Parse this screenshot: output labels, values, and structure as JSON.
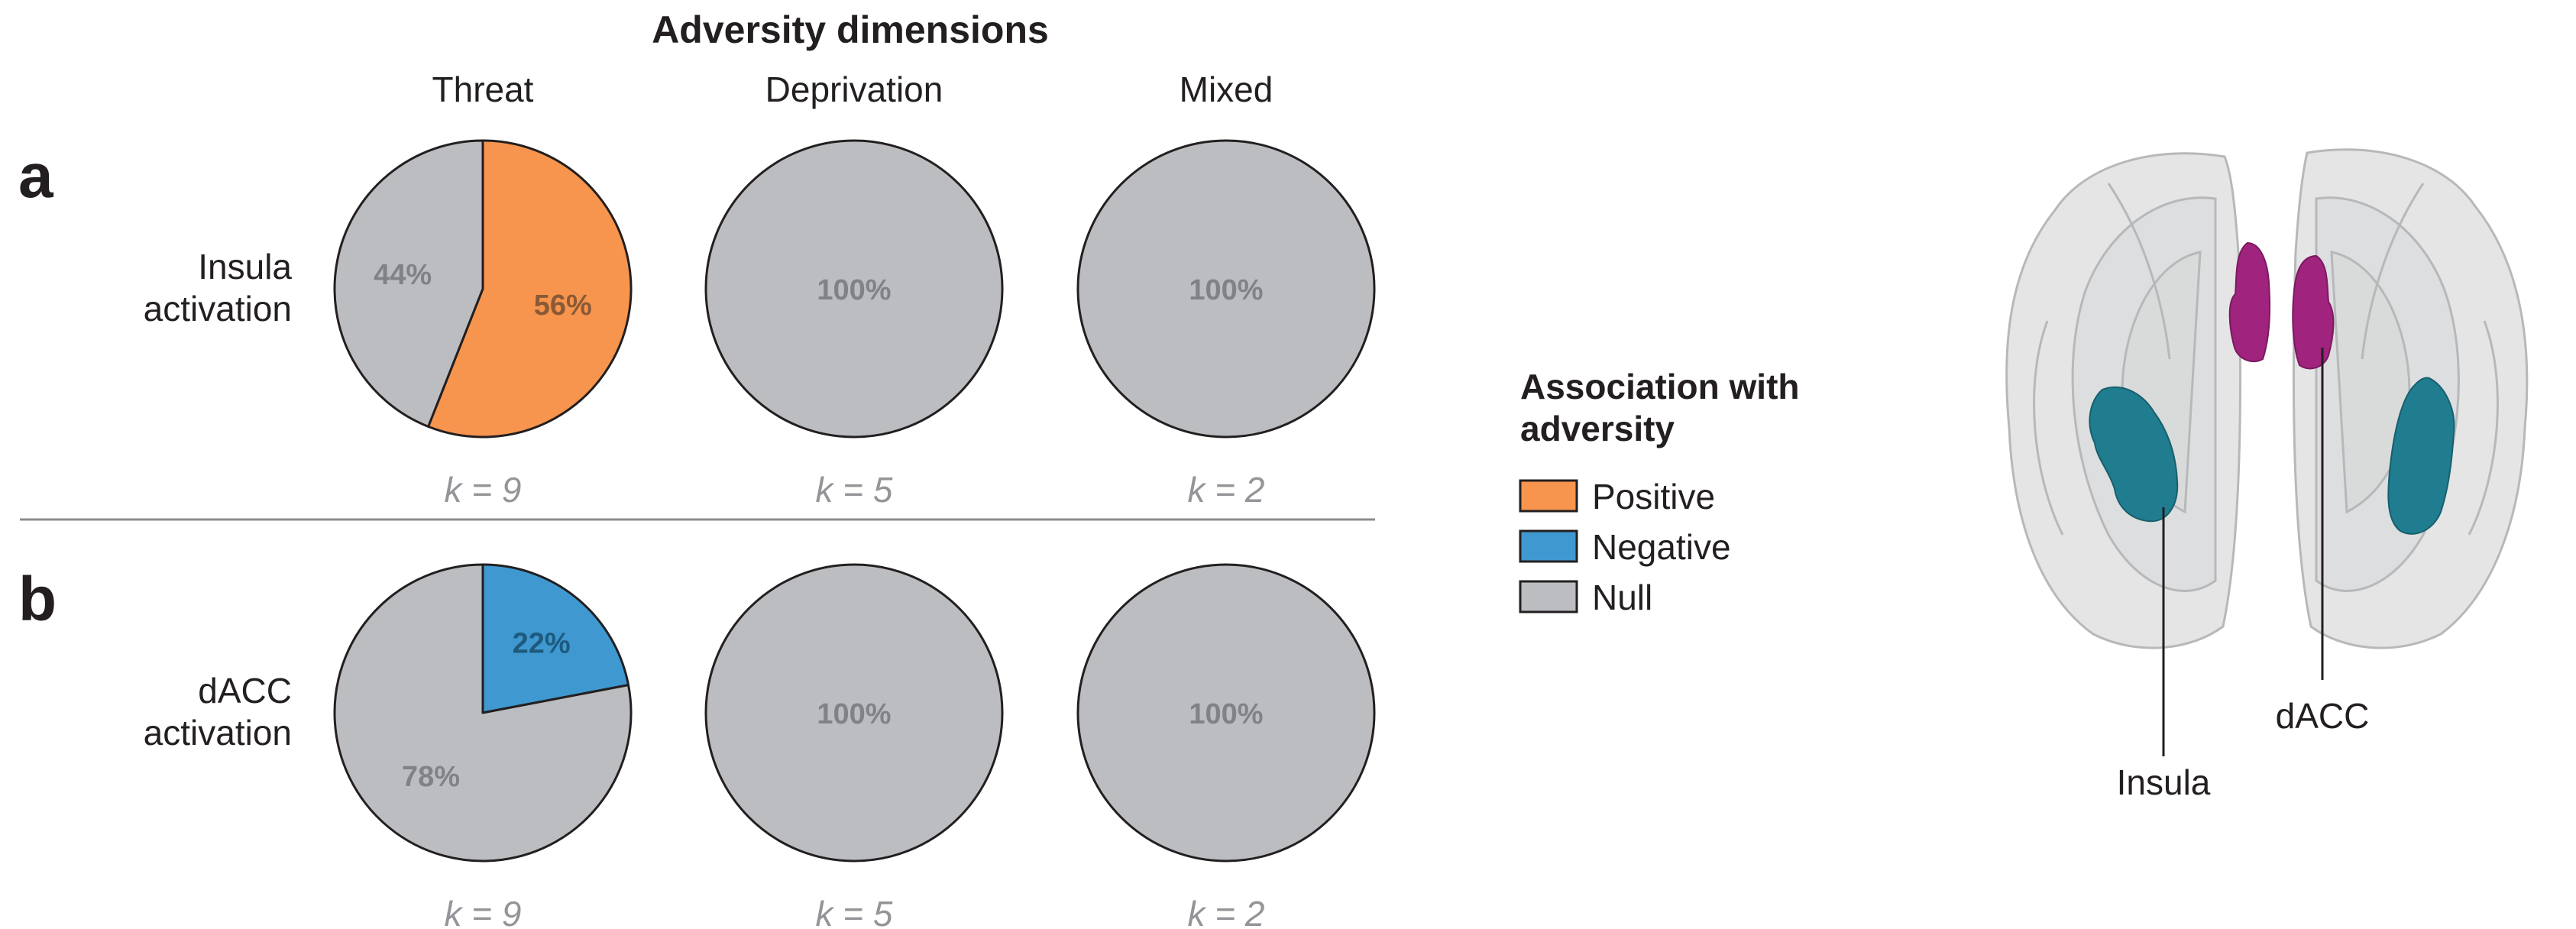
{
  "figure": {
    "header": "Adversity dimensions",
    "columns": [
      "Threat",
      "Deprivation",
      "Mixed"
    ]
  },
  "chart_data": [
    {
      "type": "pie",
      "panel": "a",
      "row_label": [
        "Insula",
        "activation"
      ],
      "pies": [
        {
          "column": "Threat",
          "k": "k = 9",
          "slices": [
            {
              "category": "Positive",
              "value": 56,
              "label": "56%"
            },
            {
              "category": "Null",
              "value": 44,
              "label": "44%"
            }
          ]
        },
        {
          "column": "Deprivation",
          "k": "k = 5",
          "slices": [
            {
              "category": "Null",
              "value": 100,
              "label": "100%"
            }
          ]
        },
        {
          "column": "Mixed",
          "k": "k = 2",
          "slices": [
            {
              "category": "Null",
              "value": 100,
              "label": "100%"
            }
          ]
        }
      ]
    },
    {
      "type": "pie",
      "panel": "b",
      "row_label": [
        "dACC",
        "activation"
      ],
      "pies": [
        {
          "column": "Threat",
          "k": "k = 9",
          "slices": [
            {
              "category": "Negative",
              "value": 22,
              "label": "22%"
            },
            {
              "category": "Null",
              "value": 78,
              "label": "78%"
            }
          ]
        },
        {
          "column": "Deprivation",
          "k": "k = 5",
          "slices": [
            {
              "category": "Null",
              "value": 100,
              "label": "100%"
            }
          ]
        },
        {
          "column": "Mixed",
          "k": "k = 2",
          "slices": [
            {
              "category": "Null",
              "value": 100,
              "label": "100%"
            }
          ]
        }
      ]
    }
  ],
  "legend": {
    "title": [
      "Association with",
      "adversity"
    ],
    "items": [
      {
        "category": "Positive",
        "label": "Positive"
      },
      {
        "category": "Negative",
        "label": "Negative"
      },
      {
        "category": "Null",
        "label": "Null"
      }
    ]
  },
  "colors": {
    "Positive": "#f7954e",
    "Negative": "#3f99d0",
    "Null": "#bcbdc0",
    "insula_region": "#1f7d8f",
    "dacc_region": "#a0237e",
    "brain": "#cfd0d2"
  },
  "brain": {
    "labels": {
      "insula": "Insula",
      "dacc": "dACC"
    }
  }
}
